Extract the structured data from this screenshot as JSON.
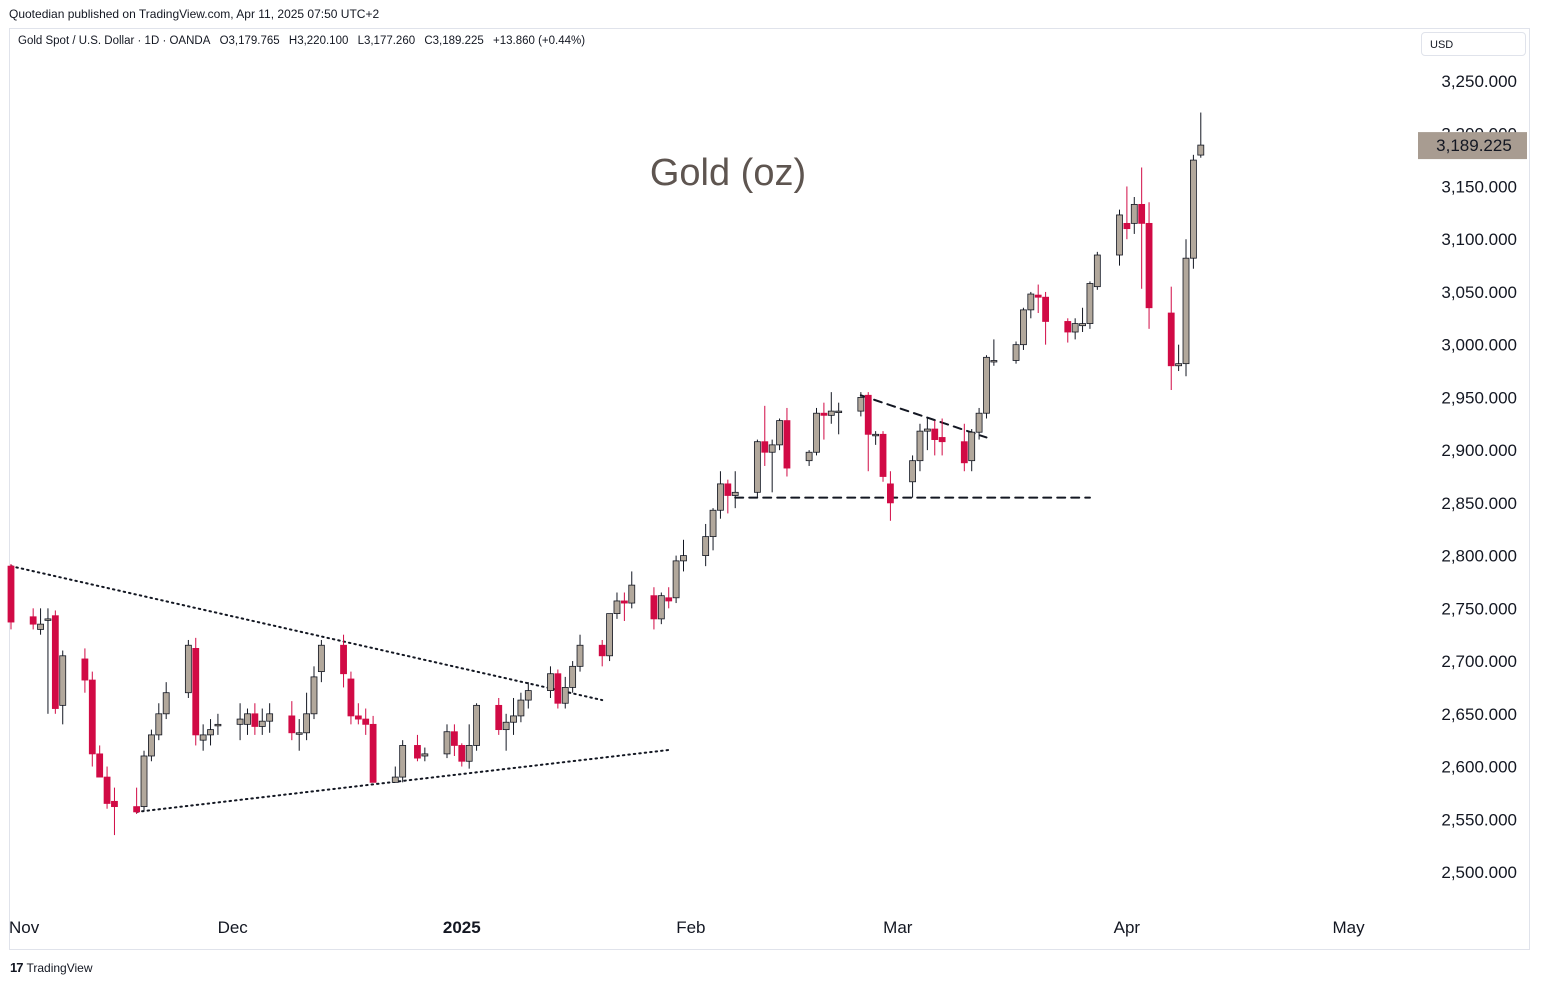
{
  "publisher_line": "Quotedian published on TradingView.com, Apr 11, 2025 07:50 UTC+2",
  "legend": {
    "symbol": "Gold Spot / U.S. Dollar · 1D · OANDA",
    "open": "O3,179.765",
    "high": "H3,220.100",
    "low": "L3,177.260",
    "close": "C3,189.225",
    "change": "+13.860 (+0.44%)"
  },
  "currency_button": "USD",
  "footer_brand": "TradingView",
  "colors": {
    "up": "#b2a89c",
    "down": "#d10a45",
    "price_tag": "#a89c91",
    "title": "#5e5550"
  },
  "chart_data": {
    "type": "candlestick",
    "title": "Gold (oz)",
    "ylim": [
      2480,
      3270
    ],
    "y_ticks": [
      "3,250.000",
      "3,200.000",
      "3,150.000",
      "3,100.000",
      "3,050.000",
      "3,000.000",
      "2,950.000",
      "2,900.000",
      "2,850.000",
      "2,800.000",
      "2,750.000",
      "2,700.000",
      "2,650.000",
      "2,600.000",
      "2,550.000",
      "2,500.000"
    ],
    "y_tick_values": [
      3250,
      3200,
      3150,
      3100,
      3050,
      3000,
      2950,
      2900,
      2850,
      2800,
      2750,
      2700,
      2650,
      2600,
      2550,
      2500
    ],
    "x_labels": [
      {
        "label": "Nov",
        "date": "2024-11-01",
        "bold": false
      },
      {
        "label": "Dec",
        "date": "2024-12-01",
        "bold": false
      },
      {
        "label": "2025",
        "date": "2025-01-01",
        "bold": true
      },
      {
        "label": "Feb",
        "date": "2025-02-01",
        "bold": false
      },
      {
        "label": "Mar",
        "date": "2025-03-01",
        "bold": false
      },
      {
        "label": "Apr",
        "date": "2025-04-01",
        "bold": false
      },
      {
        "label": "May",
        "date": "2025-05-01",
        "bold": false
      }
    ],
    "last_price": "3,189.225",
    "last_price_value": 3189.225,
    "candles": [
      {
        "date": "2024-11-01",
        "o": 2790,
        "h": 2792,
        "l": 2730,
        "c": 2737
      },
      {
        "date": "2024-11-04",
        "o": 2742,
        "h": 2750,
        "l": 2730,
        "c": 2735
      },
      {
        "date": "2024-11-05",
        "o": 2730,
        "h": 2750,
        "l": 2725,
        "c": 2735
      },
      {
        "date": "2024-11-06",
        "o": 2740,
        "h": 2750,
        "l": 2650,
        "c": 2740
      },
      {
        "date": "2024-11-07",
        "o": 2743,
        "h": 2748,
        "l": 2650,
        "c": 2655
      },
      {
        "date": "2024-11-08",
        "o": 2658,
        "h": 2710,
        "l": 2640,
        "c": 2705
      },
      {
        "date": "2024-11-11",
        "o": 2702,
        "h": 2712,
        "l": 2670,
        "c": 2682
      },
      {
        "date": "2024-11-12",
        "o": 2682,
        "h": 2690,
        "l": 2600,
        "c": 2612
      },
      {
        "date": "2024-11-13",
        "o": 2612,
        "h": 2620,
        "l": 2590,
        "c": 2590
      },
      {
        "date": "2024-11-14",
        "o": 2590,
        "h": 2600,
        "l": 2560,
        "c": 2565
      },
      {
        "date": "2024-11-15",
        "o": 2567,
        "h": 2580,
        "l": 2535,
        "c": 2562
      },
      {
        "date": "2024-11-18",
        "o": 2562,
        "h": 2580,
        "l": 2555,
        "c": 2557
      },
      {
        "date": "2024-11-19",
        "o": 2562,
        "h": 2615,
        "l": 2558,
        "c": 2610
      },
      {
        "date": "2024-11-20",
        "o": 2610,
        "h": 2635,
        "l": 2605,
        "c": 2630
      },
      {
        "date": "2024-11-21",
        "o": 2630,
        "h": 2660,
        "l": 2625,
        "c": 2650
      },
      {
        "date": "2024-11-22",
        "o": 2650,
        "h": 2680,
        "l": 2645,
        "c": 2670
      },
      {
        "date": "2024-11-25",
        "o": 2670,
        "h": 2720,
        "l": 2665,
        "c": 2715
      },
      {
        "date": "2024-11-26",
        "o": 2712,
        "h": 2722,
        "l": 2620,
        "c": 2630
      },
      {
        "date": "2024-11-27",
        "o": 2625,
        "h": 2640,
        "l": 2615,
        "c": 2630
      },
      {
        "date": "2024-11-28",
        "o": 2630,
        "h": 2645,
        "l": 2620,
        "c": 2635
      },
      {
        "date": "2024-11-29",
        "o": 2640,
        "h": 2650,
        "l": 2630,
        "c": 2640
      },
      {
        "date": "2024-12-02",
        "o": 2640,
        "h": 2660,
        "l": 2625,
        "c": 2645
      },
      {
        "date": "2024-12-03",
        "o": 2640,
        "h": 2655,
        "l": 2630,
        "c": 2650
      },
      {
        "date": "2024-12-04",
        "o": 2650,
        "h": 2660,
        "l": 2630,
        "c": 2638
      },
      {
        "date": "2024-12-05",
        "o": 2638,
        "h": 2655,
        "l": 2630,
        "c": 2643
      },
      {
        "date": "2024-12-06",
        "o": 2643,
        "h": 2660,
        "l": 2632,
        "c": 2650
      },
      {
        "date": "2024-12-09",
        "o": 2648,
        "h": 2662,
        "l": 2625,
        "c": 2632
      },
      {
        "date": "2024-12-10",
        "o": 2632,
        "h": 2645,
        "l": 2615,
        "c": 2632
      },
      {
        "date": "2024-12-11",
        "o": 2632,
        "h": 2670,
        "l": 2625,
        "c": 2650
      },
      {
        "date": "2024-12-12",
        "o": 2650,
        "h": 2695,
        "l": 2645,
        "c": 2685
      },
      {
        "date": "2024-12-13",
        "o": 2690,
        "h": 2720,
        "l": 2680,
        "c": 2715
      },
      {
        "date": "2024-12-16",
        "o": 2715,
        "h": 2725,
        "l": 2675,
        "c": 2688
      },
      {
        "date": "2024-12-17",
        "o": 2683,
        "h": 2690,
        "l": 2640,
        "c": 2648
      },
      {
        "date": "2024-12-18",
        "o": 2648,
        "h": 2660,
        "l": 2640,
        "c": 2645
      },
      {
        "date": "2024-12-19",
        "o": 2645,
        "h": 2655,
        "l": 2630,
        "c": 2640
      },
      {
        "date": "2024-12-20",
        "o": 2640,
        "h": 2648,
        "l": 2585,
        "c": 2585
      },
      {
        "date": "2024-12-23",
        "o": 2585,
        "h": 2600,
        "l": 2585,
        "c": 2590
      },
      {
        "date": "2024-12-24",
        "o": 2590,
        "h": 2625,
        "l": 2585,
        "c": 2620
      },
      {
        "date": "2024-12-26",
        "o": 2620,
        "h": 2630,
        "l": 2605,
        "c": 2608
      },
      {
        "date": "2024-12-27",
        "o": 2610,
        "h": 2618,
        "l": 2605,
        "c": 2612
      },
      {
        "date": "2024-12-30",
        "o": 2612,
        "h": 2640,
        "l": 2608,
        "c": 2633
      },
      {
        "date": "2024-12-31",
        "o": 2633,
        "h": 2640,
        "l": 2610,
        "c": 2620
      },
      {
        "date": "2025-01-01",
        "o": 2620,
        "h": 2622,
        "l": 2600,
        "c": 2605
      },
      {
        "date": "2025-01-02",
        "o": 2605,
        "h": 2640,
        "l": 2598,
        "c": 2620
      },
      {
        "date": "2025-01-03",
        "o": 2620,
        "h": 2660,
        "l": 2615,
        "c": 2658
      },
      {
        "date": "2025-01-06",
        "o": 2658,
        "h": 2665,
        "l": 2630,
        "c": 2635
      },
      {
        "date": "2025-01-07",
        "o": 2635,
        "h": 2650,
        "l": 2615,
        "c": 2642
      },
      {
        "date": "2025-01-08",
        "o": 2642,
        "h": 2665,
        "l": 2630,
        "c": 2648
      },
      {
        "date": "2025-01-09",
        "o": 2648,
        "h": 2670,
        "l": 2642,
        "c": 2663
      },
      {
        "date": "2025-01-10",
        "o": 2663,
        "h": 2680,
        "l": 2655,
        "c": 2672
      },
      {
        "date": "2025-01-13",
        "o": 2672,
        "h": 2695,
        "l": 2665,
        "c": 2688
      },
      {
        "date": "2025-01-14",
        "o": 2688,
        "h": 2692,
        "l": 2655,
        "c": 2660
      },
      {
        "date": "2025-01-15",
        "o": 2660,
        "h": 2685,
        "l": 2655,
        "c": 2675
      },
      {
        "date": "2025-01-16",
        "o": 2675,
        "h": 2700,
        "l": 2670,
        "c": 2695
      },
      {
        "date": "2025-01-17",
        "o": 2695,
        "h": 2725,
        "l": 2690,
        "c": 2715
      },
      {
        "date": "2025-01-20",
        "o": 2715,
        "h": 2720,
        "l": 2695,
        "c": 2705
      },
      {
        "date": "2025-01-21",
        "o": 2705,
        "h": 2745,
        "l": 2700,
        "c": 2745
      },
      {
        "date": "2025-01-22",
        "o": 2745,
        "h": 2765,
        "l": 2740,
        "c": 2757
      },
      {
        "date": "2025-01-23",
        "o": 2757,
        "h": 2765,
        "l": 2738,
        "c": 2755
      },
      {
        "date": "2025-01-24",
        "o": 2755,
        "h": 2785,
        "l": 2750,
        "c": 2772
      },
      {
        "date": "2025-01-27",
        "o": 2762,
        "h": 2770,
        "l": 2730,
        "c": 2740
      },
      {
        "date": "2025-01-28",
        "o": 2740,
        "h": 2765,
        "l": 2735,
        "c": 2762
      },
      {
        "date": "2025-01-29",
        "o": 2760,
        "h": 2770,
        "l": 2750,
        "c": 2757
      },
      {
        "date": "2025-01-30",
        "o": 2760,
        "h": 2800,
        "l": 2755,
        "c": 2795
      },
      {
        "date": "2025-01-31",
        "o": 2795,
        "h": 2815,
        "l": 2785,
        "c": 2800
      },
      {
        "date": "2025-02-03",
        "o": 2800,
        "h": 2830,
        "l": 2790,
        "c": 2818
      },
      {
        "date": "2025-02-04",
        "o": 2818,
        "h": 2845,
        "l": 2805,
        "c": 2843
      },
      {
        "date": "2025-02-05",
        "o": 2843,
        "h": 2880,
        "l": 2835,
        "c": 2868
      },
      {
        "date": "2025-02-06",
        "o": 2868,
        "h": 2872,
        "l": 2840,
        "c": 2857
      },
      {
        "date": "2025-02-07",
        "o": 2857,
        "h": 2880,
        "l": 2845,
        "c": 2860
      },
      {
        "date": "2025-02-10",
        "o": 2860,
        "h": 2910,
        "l": 2855,
        "c": 2908
      },
      {
        "date": "2025-02-11",
        "o": 2908,
        "h": 2942,
        "l": 2885,
        "c": 2898
      },
      {
        "date": "2025-02-12",
        "o": 2898,
        "h": 2910,
        "l": 2860,
        "c": 2905
      },
      {
        "date": "2025-02-13",
        "o": 2905,
        "h": 2930,
        "l": 2900,
        "c": 2928
      },
      {
        "date": "2025-02-14",
        "o": 2928,
        "h": 2940,
        "l": 2875,
        "c": 2883
      },
      {
        "date": "2025-02-17",
        "o": 2890,
        "h": 2900,
        "l": 2885,
        "c": 2898
      },
      {
        "date": "2025-02-18",
        "o": 2898,
        "h": 2940,
        "l": 2895,
        "c": 2935
      },
      {
        "date": "2025-02-19",
        "o": 2935,
        "h": 2945,
        "l": 2910,
        "c": 2933
      },
      {
        "date": "2025-02-20",
        "o": 2933,
        "h": 2955,
        "l": 2925,
        "c": 2937
      },
      {
        "date": "2025-02-21",
        "o": 2937,
        "h": 2945,
        "l": 2915,
        "c": 2937
      },
      {
        "date": "2025-02-24",
        "o": 2937,
        "h": 2955,
        "l": 2932,
        "c": 2950
      },
      {
        "date": "2025-02-25",
        "o": 2952,
        "h": 2955,
        "l": 2880,
        "c": 2915
      },
      {
        "date": "2025-02-26",
        "o": 2915,
        "h": 2918,
        "l": 2905,
        "c": 2915
      },
      {
        "date": "2025-02-27",
        "o": 2915,
        "h": 2918,
        "l": 2870,
        "c": 2875
      },
      {
        "date": "2025-02-28",
        "o": 2868,
        "h": 2880,
        "l": 2833,
        "c": 2850
      },
      {
        "date": "2025-03-03",
        "o": 2870,
        "h": 2895,
        "l": 2855,
        "c": 2890
      },
      {
        "date": "2025-03-04",
        "o": 2890,
        "h": 2925,
        "l": 2880,
        "c": 2918
      },
      {
        "date": "2025-03-05",
        "o": 2918,
        "h": 2930,
        "l": 2900,
        "c": 2920
      },
      {
        "date": "2025-03-06",
        "o": 2920,
        "h": 2928,
        "l": 2895,
        "c": 2910
      },
      {
        "date": "2025-03-07",
        "o": 2912,
        "h": 2930,
        "l": 2895,
        "c": 2908
      },
      {
        "date": "2025-03-10",
        "o": 2908,
        "h": 2925,
        "l": 2880,
        "c": 2888
      },
      {
        "date": "2025-03-11",
        "o": 2890,
        "h": 2920,
        "l": 2880,
        "c": 2917
      },
      {
        "date": "2025-03-12",
        "o": 2917,
        "h": 2940,
        "l": 2910,
        "c": 2935
      },
      {
        "date": "2025-03-13",
        "o": 2935,
        "h": 2990,
        "l": 2930,
        "c": 2988
      },
      {
        "date": "2025-03-14",
        "o": 2984,
        "h": 3005,
        "l": 2980,
        "c": 2985
      },
      {
        "date": "2025-03-17",
        "o": 2985,
        "h": 3003,
        "l": 2982,
        "c": 3000
      },
      {
        "date": "2025-03-18",
        "o": 3000,
        "h": 3035,
        "l": 2995,
        "c": 3033
      },
      {
        "date": "2025-03-19",
        "o": 3033,
        "h": 3050,
        "l": 3025,
        "c": 3048
      },
      {
        "date": "2025-03-20",
        "o": 3047,
        "h": 3057,
        "l": 3030,
        "c": 3045
      },
      {
        "date": "2025-03-21",
        "o": 3045,
        "h": 3050,
        "l": 3000,
        "c": 3022
      },
      {
        "date": "2025-03-24",
        "o": 3022,
        "h": 3025,
        "l": 3002,
        "c": 3012
      },
      {
        "date": "2025-03-25",
        "o": 3012,
        "h": 3025,
        "l": 3005,
        "c": 3020
      },
      {
        "date": "2025-03-26",
        "o": 3018,
        "h": 3035,
        "l": 3012,
        "c": 3020
      },
      {
        "date": "2025-03-27",
        "o": 3020,
        "h": 3060,
        "l": 3015,
        "c": 3058
      },
      {
        "date": "2025-03-28",
        "o": 3055,
        "h": 3088,
        "l": 3052,
        "c": 3085
      },
      {
        "date": "2025-03-31",
        "o": 3085,
        "h": 3128,
        "l": 3075,
        "c": 3123
      },
      {
        "date": "2025-04-01",
        "o": 3115,
        "h": 3150,
        "l": 3100,
        "c": 3110
      },
      {
        "date": "2025-04-02",
        "o": 3115,
        "h": 3140,
        "l": 3105,
        "c": 3133
      },
      {
        "date": "2025-04-03",
        "o": 3133,
        "h": 3168,
        "l": 3053,
        "c": 3115
      },
      {
        "date": "2025-04-04",
        "o": 3115,
        "h": 3135,
        "l": 3015,
        "c": 3035
      },
      {
        "date": "2025-04-07",
        "o": 3030,
        "h": 3055,
        "l": 2957,
        "c": 2980
      },
      {
        "date": "2025-04-08",
        "o": 2980,
        "h": 3000,
        "l": 2975,
        "c": 2982
      },
      {
        "date": "2025-04-09",
        "o": 2982,
        "h": 3100,
        "l": 2970,
        "c": 3082
      },
      {
        "date": "2025-04-10",
        "o": 3082,
        "h": 3180,
        "l": 3072,
        "c": 3175
      },
      {
        "date": "2025-04-11",
        "o": 3179.765,
        "h": 3220.1,
        "l": 3177.26,
        "c": 3189.225
      }
    ],
    "trendlines": [
      {
        "style": "dotted",
        "from": {
          "date": "2024-11-01",
          "price": 2790
        },
        "to": {
          "date": "2025-01-20",
          "price": 2663
        }
      },
      {
        "style": "dotted",
        "from": {
          "date": "2024-11-18",
          "price": 2557
        },
        "to": {
          "date": "2025-01-21",
          "price": 2612
        }
      },
      {
        "style": "dashed",
        "from": {
          "date": "2025-02-24",
          "price": 2952
        },
        "to": {
          "date": "2025-03-13",
          "price": 2912
        }
      },
      {
        "style": "dashed",
        "from": {
          "date": "2025-02-07",
          "price": 2855
        },
        "to": {
          "date": "2025-03-27",
          "price": 2855
        }
      }
    ]
  }
}
